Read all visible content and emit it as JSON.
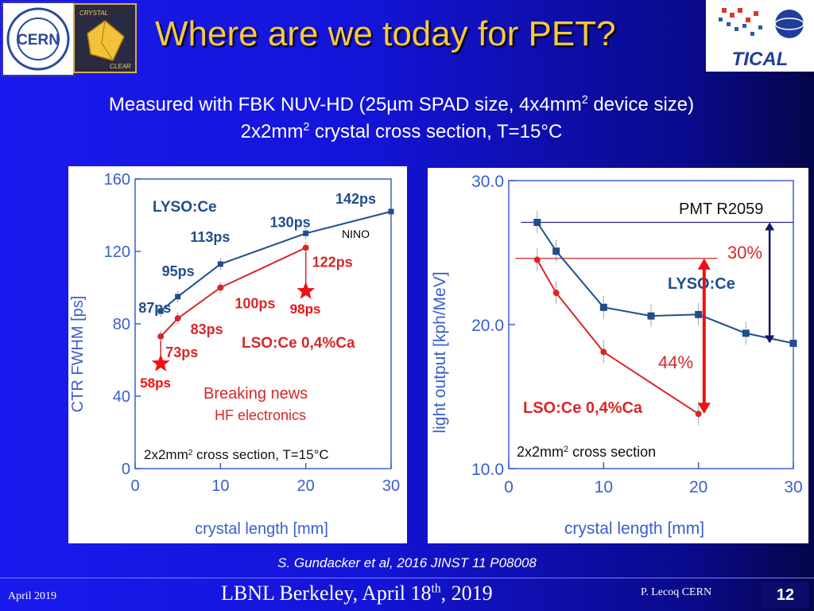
{
  "header": {
    "title": "Where are we today for PET?",
    "logo_cern_text": "CERN",
    "logo_crystal_top": "CRYSTAL",
    "logo_crystal_bottom": "CLEAR",
    "logo_tical_text": "TICAL"
  },
  "subtitle": {
    "line1_a": "Measured with FBK NUV-HD (25µm SPAD size, 4x4mm",
    "line1_sup": "2",
    "line1_b": " device size)",
    "line2_a": "2x2mm",
    "line2_sup": "2",
    "line2_b": " crystal cross section, T=15°C"
  },
  "citation": "S. Gundacker et al, 2016 JINST 11 P08008",
  "footer": {
    "left": "April 2019",
    "center_a": "LBNL Berkeley, April 18",
    "center_sup": "th",
    "center_b": ", 2019",
    "right": "P. Lecoq  CERN",
    "page": "12"
  },
  "colors": {
    "blue_series": "#1f4e8c",
    "red_series": "#d62828",
    "axis_blue": "#3a5fcd",
    "title_gold": "#f5c842"
  },
  "chart_data": [
    {
      "type": "line",
      "xlabel": "crystal length [mm]",
      "ylabel": "CTR FWHM [ps]",
      "xlim": [
        0,
        30
      ],
      "ylim": [
        0,
        160
      ],
      "xticks": [
        "0",
        "10",
        "20",
        "30"
      ],
      "yticks": [
        "0",
        "40",
        "80",
        "120",
        "160"
      ],
      "series": [
        {
          "name": "LYSO:Ce",
          "x": [
            3,
            5,
            10,
            20,
            30
          ],
          "values": [
            87,
            95,
            113,
            130,
            142
          ],
          "labels": [
            "87ps",
            "95ps",
            "113ps",
            "130ps",
            "142ps"
          ]
        },
        {
          "name": "LSO:Ce 0,4%Ca",
          "x": [
            3,
            5,
            10,
            20
          ],
          "values": [
            73,
            83,
            100,
            122
          ],
          "labels": [
            "73ps",
            "83ps",
            "100ps",
            "122ps"
          ]
        },
        {
          "name": "HF electronics",
          "x": [
            3,
            20
          ],
          "values": [
            58,
            98
          ],
          "labels": [
            "58ps",
            "98ps"
          ]
        }
      ],
      "annotations": {
        "nino": "NINO",
        "breaking": "Breaking news",
        "hf": "HF electronics",
        "cross_a": "2x2mm",
        "cross_sup": "2",
        "cross_b": " cross section, T=15°C"
      }
    },
    {
      "type": "line",
      "xlabel": "crystal length [mm]",
      "ylabel": "light output [kph/MeV]",
      "xlim": [
        0,
        30
      ],
      "ylim": [
        10,
        30
      ],
      "xticks": [
        "0",
        "10",
        "20",
        "30"
      ],
      "yticks": [
        "10.0",
        "20.0",
        "30.0"
      ],
      "series": [
        {
          "name": "LYSO:Ce",
          "x": [
            3,
            5,
            10,
            15,
            20,
            25,
            30
          ],
          "values": [
            27.1,
            25.1,
            21.2,
            20.6,
            20.7,
            19.4,
            18.7
          ]
        },
        {
          "name": "LSO:Ce 0,4%Ca",
          "x": [
            3,
            5,
            10,
            20
          ],
          "values": [
            24.5,
            22.2,
            18.1,
            13.8
          ]
        }
      ],
      "reference_lines": {
        "pmt": 27.1,
        "lso_ref": 24.6
      },
      "annotations": {
        "pmt": "PMT R2059",
        "pct30": "30%",
        "pct44": "44%",
        "cross_a": "2x2mm",
        "cross_sup": "2",
        "cross_b": " cross section"
      }
    }
  ]
}
